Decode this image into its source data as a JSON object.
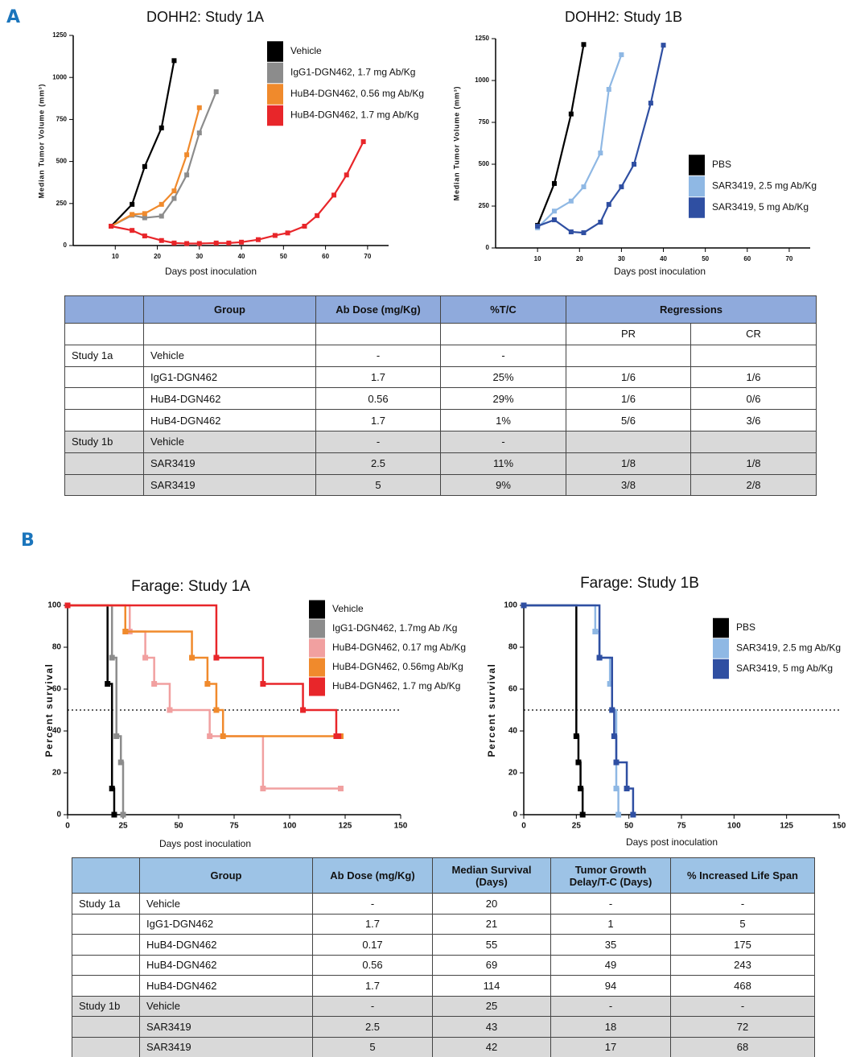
{
  "panel_labels": [
    "A",
    "B"
  ],
  "chart_data": [
    {
      "type": "line",
      "title": "DOHH2: Study 1A",
      "xlabel": "Days post inoculation",
      "ylabel": "Median Tumor Volume (mm³)",
      "xlim": [
        0,
        75
      ],
      "xticks": [
        10,
        20,
        30,
        40,
        50,
        60,
        70
      ],
      "ylim": [
        0,
        1250
      ],
      "yticks": [
        0,
        250,
        500,
        750,
        1000,
        1250
      ],
      "legend": "top-right",
      "series": [
        {
          "name": "Vehicle",
          "color": "#000000",
          "x": [
            9,
            14,
            17,
            21,
            24
          ],
          "values": [
            115,
            245,
            470,
            700,
            1100
          ]
        },
        {
          "name": "IgG1-DGN462, 1.7 mg Ab/Kg",
          "color": "#8c8c8c",
          "x": [
            9,
            14,
            17,
            21,
            24,
            27,
            30,
            34
          ],
          "values": [
            115,
            180,
            165,
            175,
            280,
            420,
            670,
            915
          ]
        },
        {
          "name": "HuB4-DGN462, 0.56 mg Ab/Kg",
          "color": "#f08a2c",
          "x": [
            9,
            14,
            17,
            21,
            24,
            27,
            30
          ],
          "values": [
            115,
            185,
            190,
            245,
            325,
            540,
            820
          ]
        },
        {
          "name": "HuB4-DGN462, 1.7 mg Ab/Kg",
          "color": "#e8262a",
          "x": [
            9,
            14,
            17,
            21,
            24,
            27,
            30,
            34,
            37,
            40,
            44,
            48,
            51,
            55,
            58,
            62,
            65,
            69
          ],
          "values": [
            115,
            90,
            57,
            30,
            15,
            12,
            12,
            15,
            15,
            20,
            35,
            60,
            75,
            115,
            178,
            300,
            420,
            618
          ]
        }
      ]
    },
    {
      "type": "line",
      "title": "DOHH2: Study 1B",
      "xlabel": "Days post inoculation",
      "ylabel": "Median Tumor Volume (mm³)",
      "xlim": [
        0,
        75
      ],
      "xticks": [
        10,
        20,
        30,
        40,
        50,
        60,
        70
      ],
      "ylim": [
        0,
        1250
      ],
      "yticks": [
        0,
        250,
        500,
        750,
        1000,
        1250
      ],
      "legend": "right",
      "series": [
        {
          "name": "PBS",
          "color": "#000000",
          "x": [
            10,
            14,
            18,
            21
          ],
          "values": [
            135,
            385,
            800,
            1215
          ]
        },
        {
          "name": "SAR3419, 2.5 mg Ab/Kg",
          "color": "#8fb8e4",
          "x": [
            10,
            14,
            18,
            21,
            25,
            27,
            30
          ],
          "values": [
            120,
            220,
            280,
            365,
            567,
            947,
            1154
          ]
        },
        {
          "name": "SAR3419, 5 mg Ab/Kg",
          "color": "#2f4fa2",
          "x": [
            10,
            14,
            18,
            21,
            25,
            27,
            30,
            33,
            37,
            40
          ],
          "values": [
            130,
            168,
            96,
            91,
            154,
            260,
            365,
            500,
            865,
            1211
          ]
        }
      ]
    },
    {
      "type": "step",
      "title": "Farage: Study 1A",
      "xlabel": "Days post inoculation",
      "ylabel": "Percent survival",
      "xlim": [
        0,
        150
      ],
      "xticks": [
        0,
        25,
        50,
        75,
        100,
        125,
        150
      ],
      "ylim": [
        0,
        100
      ],
      "yticks": [
        0,
        20,
        40,
        60,
        80,
        100
      ],
      "hline": 50,
      "legend": "top-right",
      "series": [
        {
          "name": "Vehicle",
          "color": "#000000",
          "x": [
            0,
            18,
            20,
            21
          ],
          "values": [
            100,
            62.5,
            12.5,
            0
          ]
        },
        {
          "name": "IgG1-DGN462, 1.7mg Ab /Kg",
          "color": "#8c8c8c",
          "x": [
            0,
            20,
            22,
            24,
            25
          ],
          "values": [
            100,
            75,
            37.5,
            25,
            0
          ]
        },
        {
          "name": "HuB4-DGN462, 0.17 mg Ab/Kg",
          "color": "#f1a0a0",
          "x": [
            0,
            28,
            35,
            39,
            46,
            64,
            88,
            123
          ],
          "values": [
            100,
            87.5,
            75,
            62.5,
            50,
            37.5,
            12.5,
            12.5
          ]
        },
        {
          "name": "HuB4-DGN462, 0.56mg Ab/Kg",
          "color": "#f08a2c",
          "x": [
            0,
            26,
            56,
            63,
            67,
            70,
            123
          ],
          "values": [
            100,
            87.5,
            75,
            62.5,
            50,
            37.5,
            37.5
          ]
        },
        {
          "name": "HuB4-DGN462, 1.7 mg Ab/Kg",
          "color": "#e8262a",
          "x": [
            0,
            67,
            88,
            106,
            121,
            122
          ],
          "values": [
            100,
            75,
            62.5,
            50,
            37.5,
            37.5
          ]
        }
      ]
    },
    {
      "type": "step",
      "title": "Farage: Study 1B",
      "xlabel": "Days post inoculation",
      "ylabel": "Percent survival",
      "xlim": [
        0,
        150
      ],
      "xticks": [
        0,
        25,
        50,
        75,
        100,
        125,
        150
      ],
      "ylim": [
        0,
        100
      ],
      "yticks": [
        0,
        20,
        40,
        60,
        80,
        100
      ],
      "hline": 50,
      "legend": "top-right",
      "series": [
        {
          "name": "PBS",
          "color": "#000000",
          "x": [
            0,
            25,
            26,
            27,
            28
          ],
          "values": [
            100,
            37.5,
            25,
            12.5,
            0
          ]
        },
        {
          "name": "SAR3419, 2.5 mg Ab/Kg",
          "color": "#8fb8e4",
          "x": [
            0,
            34,
            36,
            41,
            42,
            44,
            45
          ],
          "values": [
            100,
            87.5,
            75,
            62.5,
            50,
            12.5,
            0
          ]
        },
        {
          "name": "SAR3419, 5 mg Ab/Kg",
          "color": "#2f4fa2",
          "x": [
            0,
            36,
            42,
            43,
            44,
            49,
            52
          ],
          "values": [
            100,
            75,
            50,
            37.5,
            25,
            12.5,
            0
          ]
        }
      ]
    }
  ],
  "tables": [
    {
      "header": [
        "Group",
        "Ab Dose (mg/Kg)",
        "%T/C",
        "Regressions"
      ],
      "subheader": [
        "PR",
        "CR"
      ],
      "groups": [
        {
          "study": "Study 1a",
          "rows": [
            [
              "Vehicle",
              "-",
              "-",
              null,
              null
            ],
            [
              "IgG1-DGN462",
              "1.7",
              "25%",
              "1/6",
              "1/6"
            ],
            [
              "HuB4-DGN462",
              "0.56",
              "29%",
              "1/6",
              "0/6"
            ],
            [
              "HuB4-DGN462",
              "1.7",
              "1%",
              "5/6",
              "3/6"
            ]
          ]
        },
        {
          "study": "Study 1b",
          "rows": [
            [
              "Vehicle",
              "-",
              "-",
              null,
              null
            ],
            [
              "SAR3419",
              "2.5",
              "11%",
              "1/8",
              "1/8"
            ],
            [
              "SAR3419",
              "5",
              "9%",
              "3/8",
              "2/8"
            ]
          ]
        }
      ]
    },
    {
      "header": [
        "Group",
        "Ab Dose (mg/Kg)",
        "Median Survival (Days)",
        "Tumor Growth Delay/T-C (Days)",
        "% Increased Life Span"
      ],
      "groups": [
        {
          "study": "Study 1a",
          "rows": [
            [
              "Vehicle",
              "-",
              "20",
              "-",
              "-"
            ],
            [
              "IgG1-DGN462",
              "1.7",
              "21",
              "1",
              "5"
            ],
            [
              "HuB4-DGN462",
              "0.17",
              "55",
              "35",
              "175"
            ],
            [
              "HuB4-DGN462",
              "0.56",
              "69",
              "49",
              "243"
            ],
            [
              "HuB4-DGN462",
              "1.7",
              "114",
              "94",
              "468"
            ]
          ]
        },
        {
          "study": "Study 1b",
          "rows": [
            [
              "Vehicle",
              "-",
              "25",
              "-",
              "-"
            ],
            [
              "SAR3419",
              "2.5",
              "43",
              "18",
              "72"
            ],
            [
              "SAR3419",
              "5",
              "42",
              "17",
              "68"
            ]
          ]
        }
      ]
    }
  ]
}
